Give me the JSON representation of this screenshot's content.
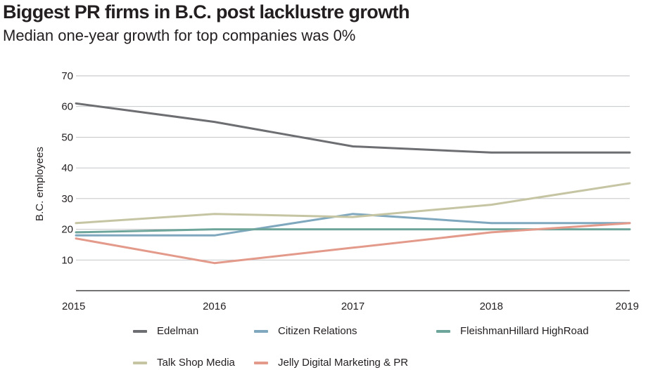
{
  "chart_data": {
    "type": "line",
    "title": "Biggest PR firms in B.C. post lacklustre growth",
    "subtitle": "Median one-year growth for top companies was 0%",
    "ylabel": "B.C. employees",
    "xlabel": "",
    "x": [
      "2015",
      "2016",
      "2017",
      "2018",
      "2019"
    ],
    "ylim": [
      0,
      70
    ],
    "yticks": [
      10,
      20,
      30,
      40,
      50,
      60,
      70
    ],
    "grid": true,
    "legend_position": "bottom",
    "series": [
      {
        "name": "Edelman",
        "color": "#6d6e71",
        "values": [
          61,
          55,
          47,
          45,
          45
        ]
      },
      {
        "name": "Citizen Relations",
        "color": "#7fa8bf",
        "values": [
          18,
          18,
          25,
          22,
          22
        ]
      },
      {
        "name": "FleishmanHillard HighRoad",
        "color": "#6ea59a",
        "values": [
          19,
          20,
          20,
          20,
          20
        ]
      },
      {
        "name": "Talk Shop Media",
        "color": "#c6c5a3",
        "values": [
          22,
          25,
          24,
          28,
          35
        ]
      },
      {
        "name": "Jelly Digital Marketing & PR",
        "color": "#e39a8a",
        "values": [
          17,
          9,
          14,
          19,
          22
        ]
      }
    ]
  }
}
